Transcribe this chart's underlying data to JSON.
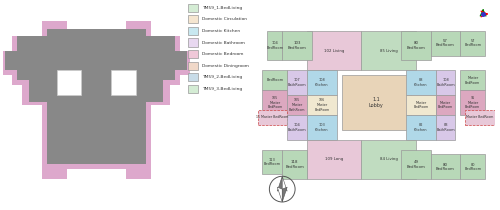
{
  "legend_items": [
    {
      "label": "TM59_1-BedLiving",
      "color": "#d4ecd4"
    },
    {
      "label": "Domestic Circulation",
      "color": "#f5e6d0"
    },
    {
      "label": "Domestic Kitchen",
      "color": "#c8e8f0"
    },
    {
      "label": "Domestic Bathroom",
      "color": "#e8d8f0"
    },
    {
      "label": "Domestic Bedroom",
      "color": "#f0c8d8"
    },
    {
      "label": "Domestic Diningroom",
      "color": "#f0d8c8"
    },
    {
      "label": "TM59_2-BedLiving",
      "color": "#c8dce8"
    },
    {
      "label": "TM59_3-BedLiving",
      "color": "#d4ecd4"
    }
  ],
  "bg_color": "#ffffff",
  "left_building": {
    "outer_color": "#dda8cc",
    "inner_color": "#888888",
    "hole_color": "#ffffff"
  },
  "floor_plan": {
    "center_color": "#e8d4b8",
    "bedroom_color": "#b8d8b8",
    "kitchen_color": "#b0d8e8",
    "bathroom_color": "#d8c8e8",
    "living_pink": "#e8c8d8",
    "living_green": "#c0dcc0",
    "master_bed_color": "#dca8c0",
    "cream_color": "#f0e8d0"
  }
}
